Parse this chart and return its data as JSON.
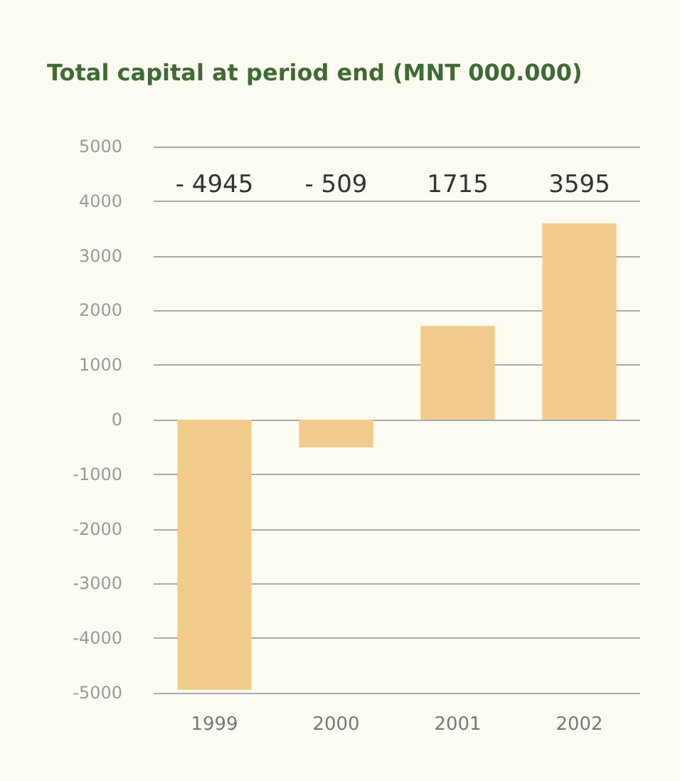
{
  "chart_data": {
    "type": "bar",
    "title": "Total capital at period end (MNT 000.000)",
    "categories": [
      "1999",
      "2000",
      "2001",
      "2002"
    ],
    "values": [
      -4945,
      -509,
      1715,
      3595
    ],
    "annotations": [
      "- 4945",
      "- 509",
      "1715",
      "3595"
    ],
    "color": "#f2cb8c",
    "ylim": [
      -5000,
      5000
    ],
    "yticks": [
      -5000,
      -4000,
      -3000,
      -2000,
      -1000,
      0,
      1000,
      2000,
      3000,
      4000,
      5000
    ],
    "grid": "y"
  }
}
